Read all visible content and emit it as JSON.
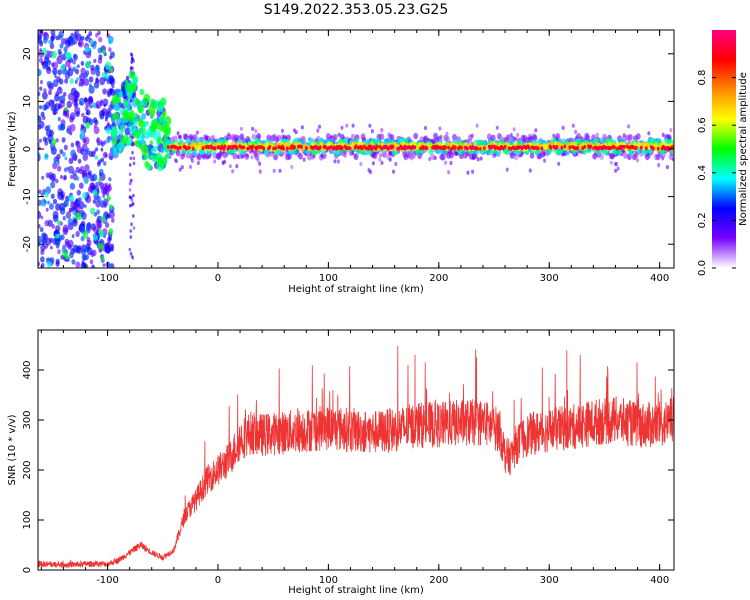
{
  "title": "S149.2022.353.05.23.G25",
  "chart_data": [
    {
      "type": "heatmap",
      "xlabel": "Height of straight line (km)",
      "ylabel": "Frequency (Hz)",
      "xlim": [
        -163,
        413
      ],
      "ylim": [
        -25,
        25
      ],
      "x_ticks": [
        -100,
        0,
        100,
        200,
        300,
        400
      ],
      "y_ticks": [
        -20,
        -10,
        0,
        10,
        20
      ],
      "grid": false,
      "colorbar": {
        "label": "Normalized spectral amplitude",
        "range": [
          0,
          1
        ],
        "ticks": [
          "0.0",
          "0.2",
          "0.4",
          "0.6",
          "0.8"
        ],
        "ramp_colors": [
          "#ffffff",
          "#7700ff",
          "#0000ff",
          "#00ffff",
          "#00ff00",
          "#ffff00",
          "#ff8800",
          "#ff0000",
          "#ff0080"
        ]
      },
      "features": [
        {
          "region_km": [
            -163,
            -95
          ],
          "description_level": "scattered broadband noise, amplitude 0.1-0.3"
        },
        {
          "region_km": [
            -95,
            -45
          ],
          "description_level": "drifting trace from ~0 Hz up to ~10 Hz, amplitude 0.3-0.6"
        },
        {
          "region_km": [
            -45,
            413
          ],
          "center_freq_hz": 0.5,
          "peak_amplitude": 0.9
        }
      ]
    },
    {
      "type": "line",
      "xlabel": "Height of straight line (km)",
      "ylabel": "SNR (10 * v/v)",
      "xlim": [
        -163,
        413
      ],
      "ylim": [
        0,
        480
      ],
      "x_ticks": [
        -100,
        0,
        100,
        200,
        300,
        400
      ],
      "y_ticks": [
        0,
        100,
        200,
        300,
        400
      ],
      "grid": false,
      "series_color": "#ee3333",
      "x": [
        -163,
        -140,
        -120,
        -100,
        -90,
        -80,
        -70,
        -60,
        -50,
        -40,
        -30,
        -20,
        -10,
        0,
        10,
        20,
        30,
        40,
        60,
        80,
        100,
        120,
        140,
        160,
        180,
        200,
        220,
        240,
        255,
        260,
        265,
        270,
        280,
        300,
        320,
        340,
        360,
        380,
        400,
        413
      ],
      "y": [
        12,
        10,
        12,
        12,
        20,
        35,
        50,
        35,
        25,
        40,
        110,
        140,
        180,
        200,
        220,
        260,
        275,
        270,
        275,
        280,
        285,
        280,
        275,
        280,
        290,
        290,
        295,
        295,
        280,
        230,
        225,
        250,
        270,
        280,
        285,
        295,
        300,
        290,
        290,
        300
      ]
    }
  ]
}
